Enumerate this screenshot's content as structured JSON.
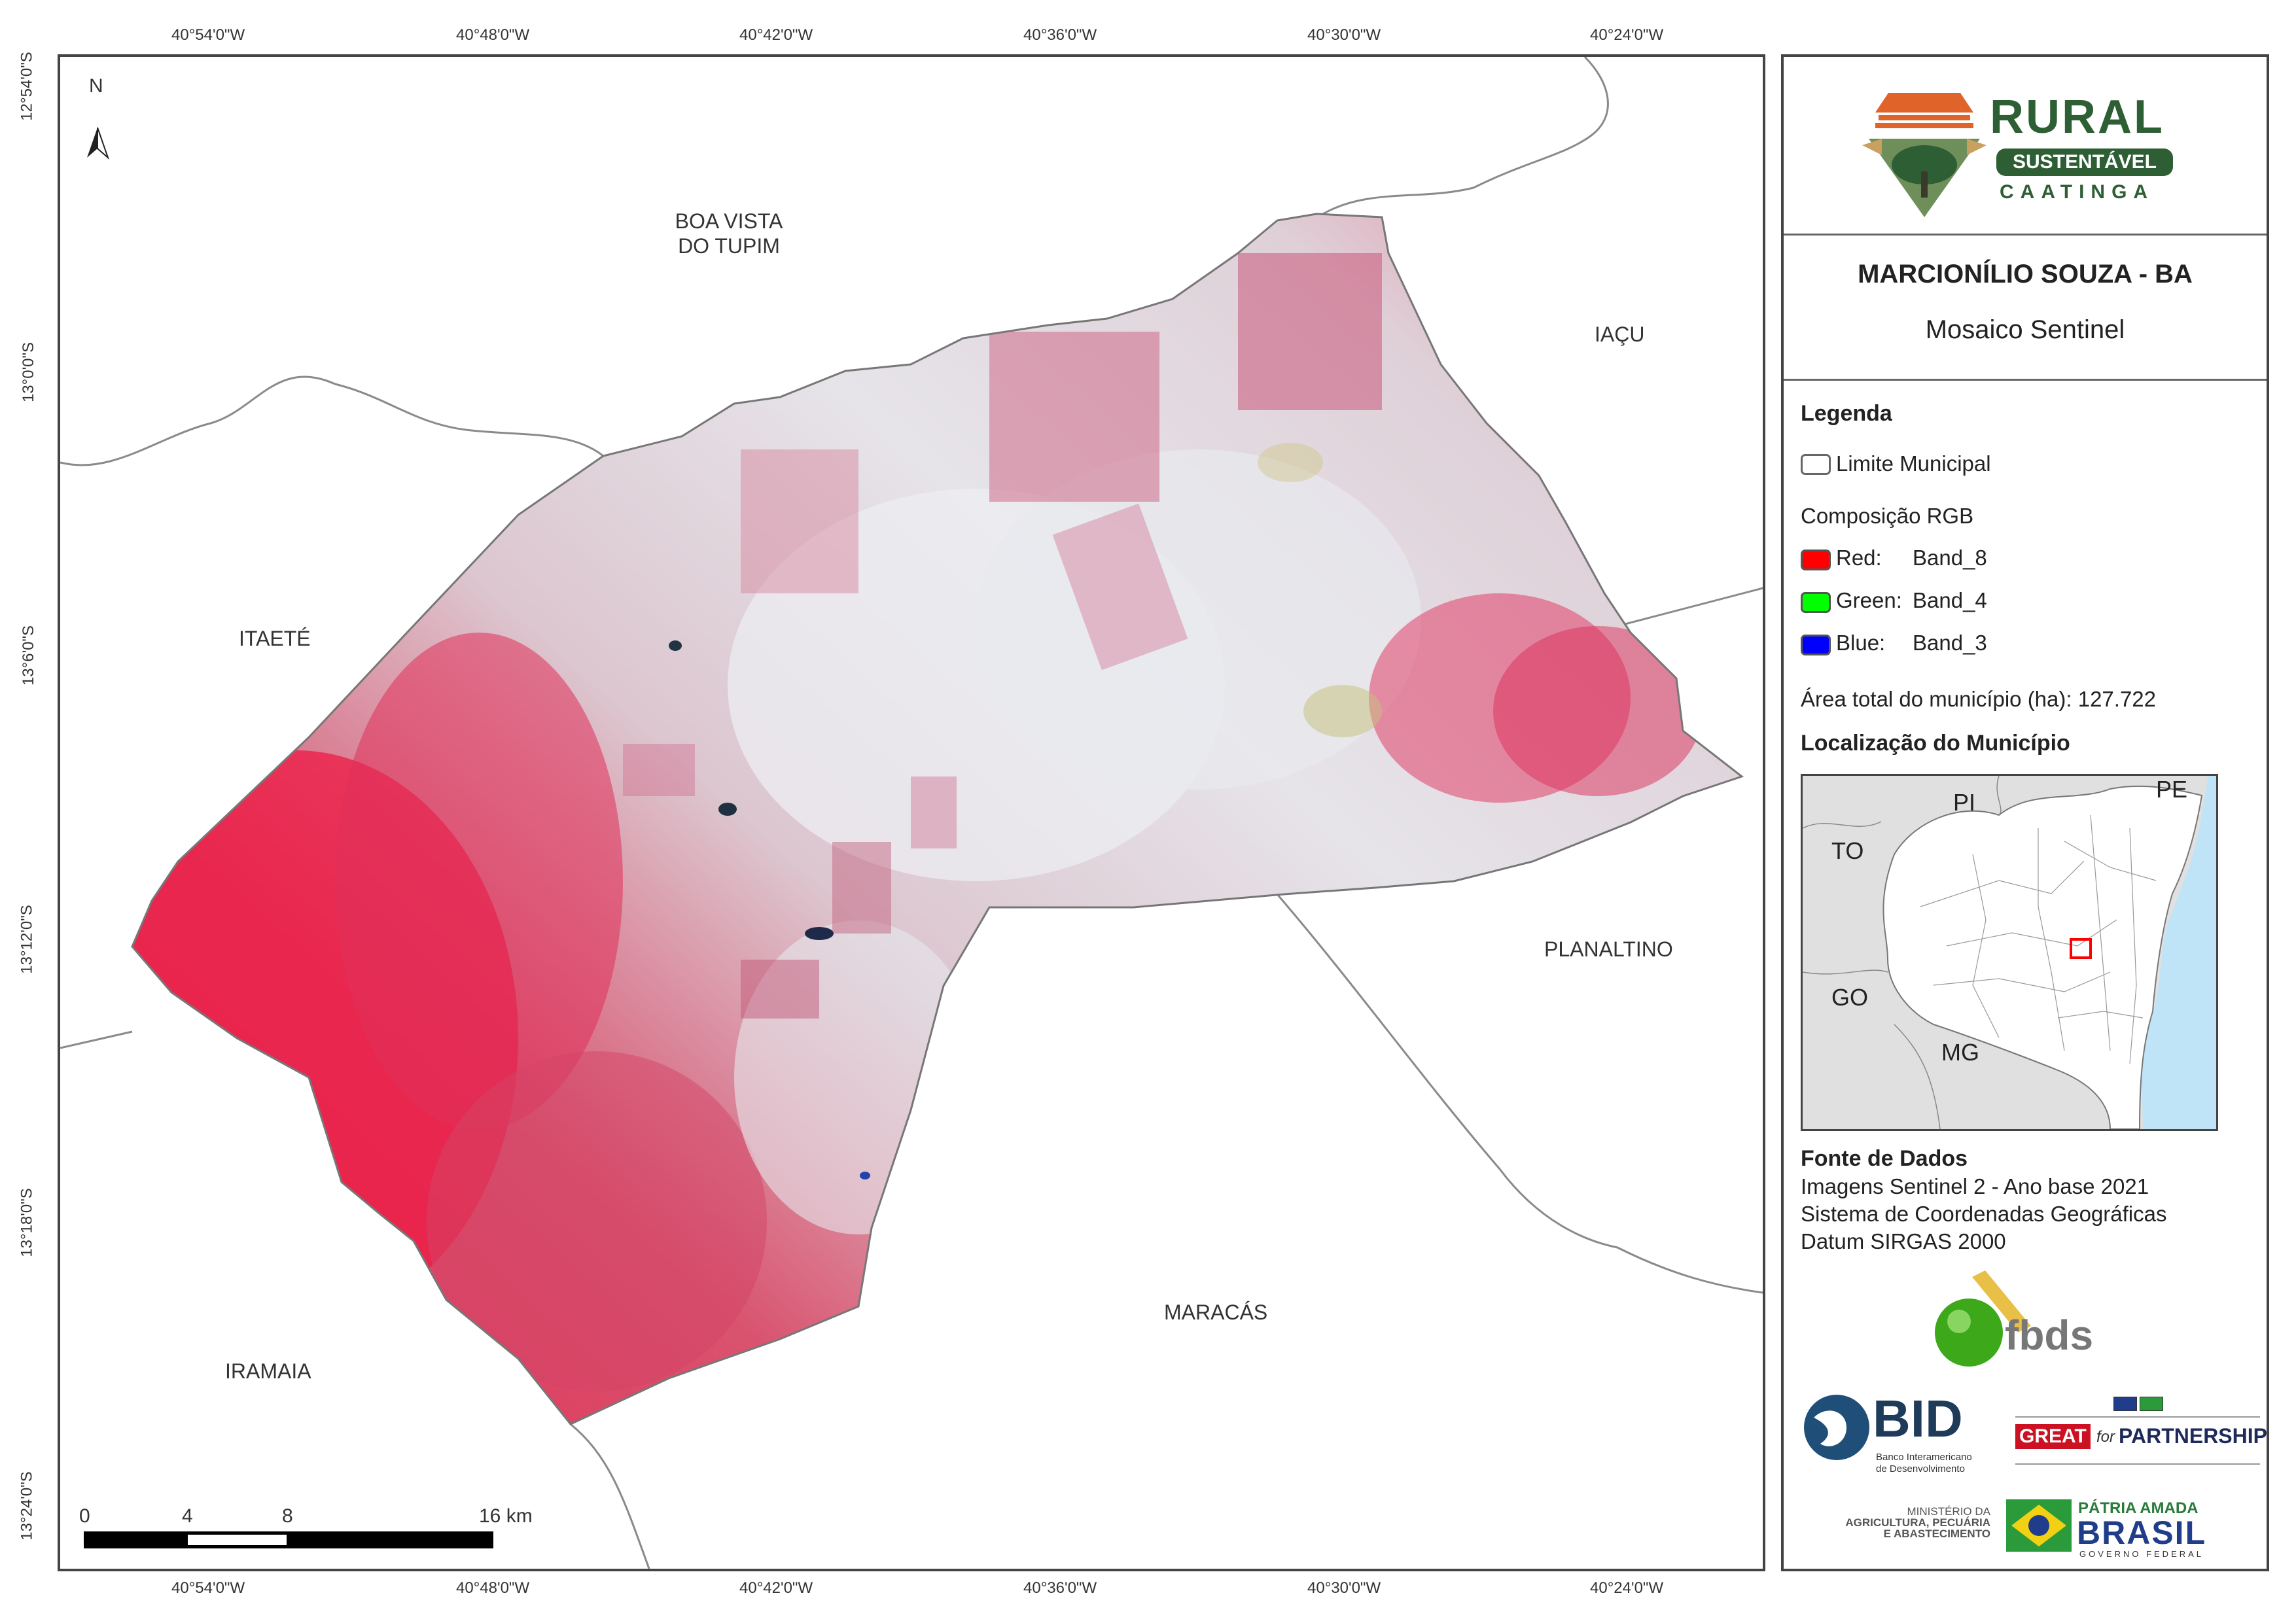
{
  "coordinates": {
    "top": [
      "40°54'0\"W",
      "40°48'0\"W",
      "40°42'0\"W",
      "40°36'0\"W",
      "40°30'0\"W",
      "40°24'0\"W"
    ],
    "bottom": [
      "40°54'0\"W",
      "40°48'0\"W",
      "40°42'0\"W",
      "40°36'0\"W",
      "40°30'0\"W",
      "40°24'0\"W"
    ],
    "left": [
      "12°54'0\"S",
      "13°0'0\"S",
      "13°6'0\"S",
      "13°12'0\"S",
      "13°18'0\"S",
      "13°24'0\"S"
    ]
  },
  "map": {
    "north_label": "N",
    "neighbors": {
      "boa_vista_1": "BOA VISTA",
      "boa_vista_2": "DO TUPIM",
      "iacu": "IAÇU",
      "itaete": "ITAETÉ",
      "planaltino": "PLANALTINO",
      "maracas": "MARACÁS",
      "iramaia": "IRAMAIA"
    },
    "scale_labels": [
      "0",
      "4",
      "8",
      "16 km"
    ],
    "colors": {
      "vegetation_red": "#e8204a",
      "pink": "#d9607e",
      "light_soil": "#e3dfe6",
      "boundary": "#888888"
    }
  },
  "panel": {
    "logo": {
      "line1": "RURAL",
      "line2": "SUSTENTÁVEL",
      "line3": "CAATINGA",
      "green": "#2e5e34",
      "orange": "#e0632a"
    },
    "title": "MARCIONÍLIO SOUZA - BA",
    "subtitle": "Mosaico Sentinel",
    "legend": {
      "heading": "Legenda",
      "limit": "Limite Municipal",
      "rgb_heading": "Composição RGB",
      "red_label": "Red:",
      "red_band": "Band_8",
      "green_label": "Green:",
      "green_band": "Band_4",
      "blue_label": "Blue:",
      "blue_band": "Band_3",
      "red_color": "#ff0000",
      "green_color": "#00ff00",
      "blue_color": "#0000ff",
      "area": "Área total do município (ha): 127.722"
    },
    "location": {
      "heading": "Localização do Município",
      "labels": {
        "pi": "PI",
        "pe": "PE",
        "to": "TO",
        "go": "GO",
        "mg": "MG"
      },
      "sea_color": "#bfe4f7",
      "land_color": "#e0e0e0",
      "state_color": "#ffffff"
    },
    "sources": {
      "heading": "Fonte de Dados",
      "line1": "Imagens Sentinel 2 - Ano base 2021",
      "line2": "Sistema de Coordenadas Geográficas",
      "line3": "Datum SIRGAS 2000"
    },
    "partners": {
      "fbds": "fbds",
      "bid": "BID",
      "bid_sub1": "Banco Interamericano",
      "bid_sub2": "de Desenvolvimento",
      "great": "GREAT",
      "great_for": "for",
      "partnership": "PARTNERSHIP",
      "ministry1": "MINISTÉRIO DA",
      "ministry2": "AGRICULTURA, PECUÁRIA",
      "ministry3": "E ABASTECIMENTO",
      "patria": "PÁTRIA AMADA",
      "brasil": "BRASIL",
      "governo": "GOVERNO FEDERAL"
    }
  }
}
